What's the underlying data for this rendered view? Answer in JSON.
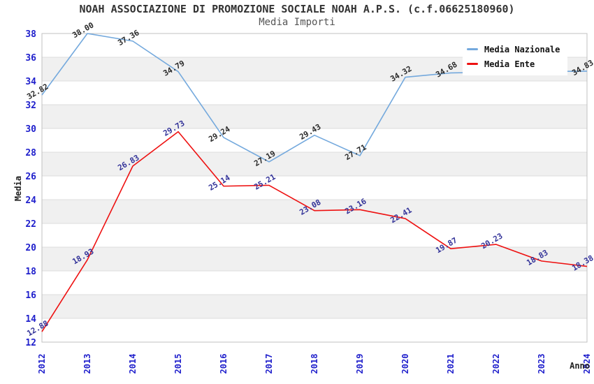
{
  "chart_data": {
    "type": "line",
    "title": "NOAH ASSOCIAZIONE DI PROMOZIONE SOCIALE NOAH A.P.S. (c.f.06625180960)",
    "subtitle": "Media Importi",
    "xlabel": "Anno",
    "ylabel": "Media",
    "x": [
      "2012",
      "2013",
      "2014",
      "2015",
      "2016",
      "2017",
      "2018",
      "2019",
      "2020",
      "2021",
      "2022",
      "2023",
      "2024"
    ],
    "ylim": [
      12,
      38
    ],
    "ytick_step": 2,
    "grid_bands": true,
    "band_color": "#f0f0f0",
    "gridline_color": "#dcdcdc",
    "border_color": "#c0c0c0",
    "tick_label_color": "#2020cc",
    "legend_position": "top-right",
    "series": [
      {
        "name": "Media Nazionale",
        "color": "#74a9dd",
        "label_color": "#2b2b2b",
        "values": [
          32.82,
          38.0,
          37.36,
          34.79,
          29.24,
          27.19,
          29.43,
          27.71,
          34.32,
          34.68,
          34.75,
          34.8,
          34.83
        ],
        "labels": [
          "32.82",
          "38.00",
          "37.36",
          "34.79",
          "29.24",
          "27.19",
          "29.43",
          "27.71",
          "34.32",
          "34.68",
          "",
          "",
          "34.83"
        ]
      },
      {
        "name": "Media Ente",
        "color": "#ee1111",
        "label_color": "#333399",
        "values": [
          12.88,
          18.93,
          26.83,
          29.73,
          25.14,
          25.21,
          23.08,
          23.16,
          22.41,
          19.87,
          20.23,
          18.83,
          18.38
        ],
        "labels": [
          "12.88",
          "18.93",
          "26.83",
          "29.73",
          "25.14",
          "25.21",
          "23.08",
          "23.16",
          "22.41",
          "19.87",
          "20.23",
          "18.83",
          "18.38"
        ]
      }
    ]
  }
}
